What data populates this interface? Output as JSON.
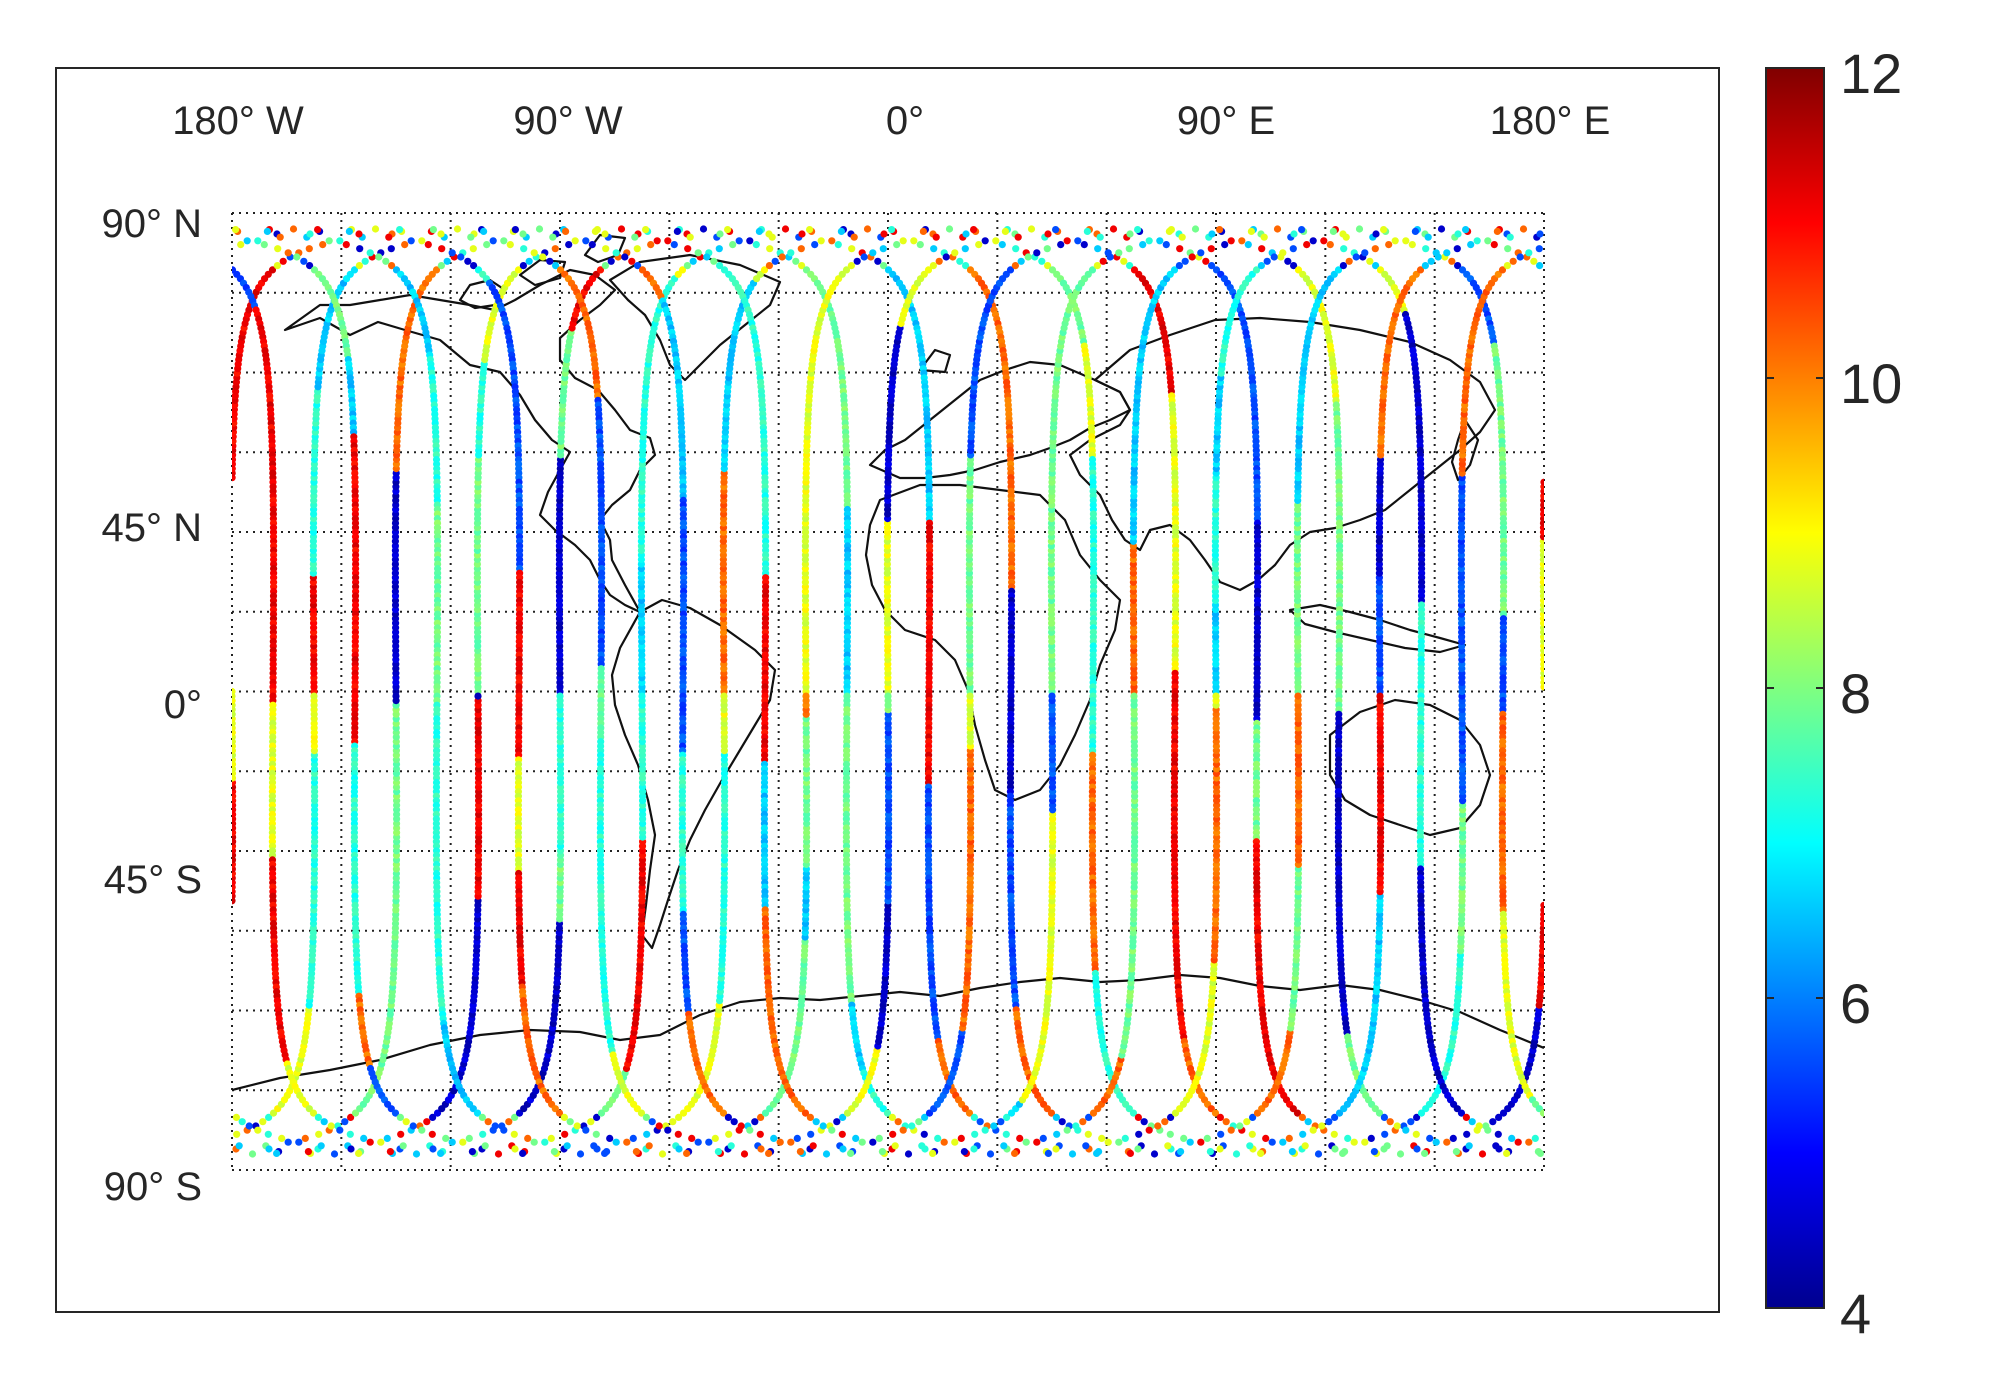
{
  "chart_data": {
    "type": "scatter",
    "title": "",
    "xlabel": "",
    "ylabel": "",
    "projection": "equirectangular",
    "x_range": [
      -180,
      180
    ],
    "y_range": [
      -90,
      90
    ],
    "x_tick_labels": [
      "180° W",
      "90° W",
      "0°",
      "90° E",
      "180° E"
    ],
    "y_tick_labels": [
      "90° N",
      "45° N",
      "0°",
      "45° S",
      "90° S"
    ],
    "x_ticks": [
      -180,
      -90,
      0,
      90,
      180
    ],
    "y_ticks": [
      90,
      45,
      0,
      -45,
      -90
    ],
    "grid": true,
    "grid_style": "dotted",
    "graticule_lon_step": 30,
    "graticule_lat_step": 15,
    "coastlines": true,
    "colormap": "jet",
    "colorbar": {
      "placement": "right",
      "range": [
        4,
        12
      ],
      "tick_values": [
        4,
        6,
        8,
        10,
        12
      ],
      "tick_labels": [
        "4",
        "6",
        "8",
        "10",
        "12"
      ]
    },
    "series": [
      {
        "kind": "satellite ground tracks",
        "track_count": 32,
        "longitude_spacing_deg": 22.5,
        "ascending_equator_crossings_lon": [
          -180,
          -157.5,
          -135,
          -112.5,
          -90,
          -67.5,
          -45,
          -22.5,
          0,
          22.5,
          45,
          67.5,
          90,
          112.5,
          135,
          157.5
        ],
        "max_latitude_deg": 87,
        "value_range": [
          4,
          12
        ]
      }
    ]
  }
}
